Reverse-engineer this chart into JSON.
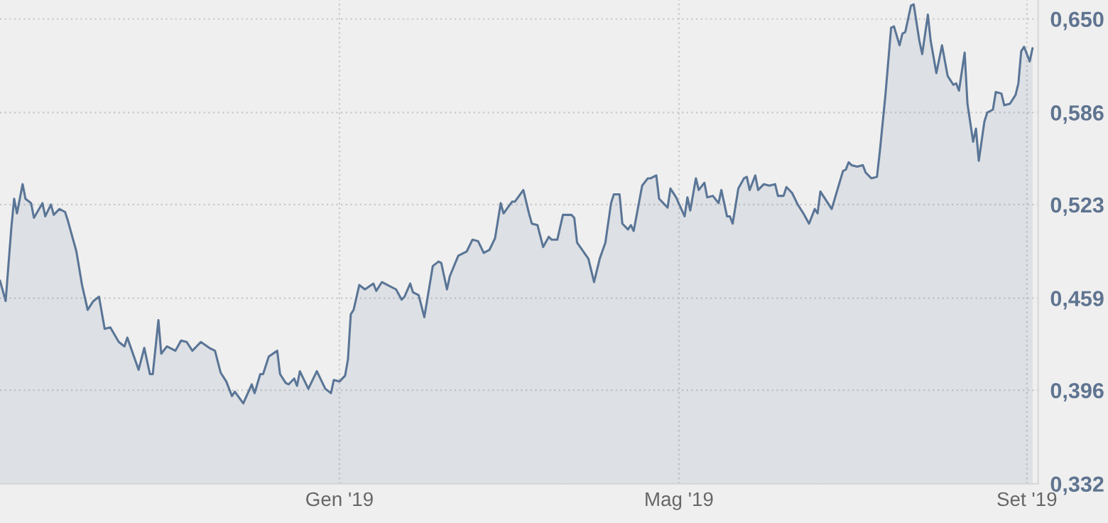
{
  "chart_data": {
    "type": "area",
    "x": [
      "2018-09-03",
      "2018-09-05",
      "2018-09-07",
      "2018-09-08",
      "2018-09-09",
      "2018-09-11",
      "2018-09-12",
      "2018-09-14",
      "2018-09-15",
      "2018-09-18",
      "2018-09-19",
      "2018-09-21",
      "2018-09-22",
      "2018-09-24",
      "2018-09-26",
      "2018-09-27",
      "2018-09-30",
      "2018-10-02",
      "2018-10-04",
      "2018-10-06",
      "2018-10-08",
      "2018-10-10",
      "2018-10-12",
      "2018-10-15",
      "2018-10-17",
      "2018-10-18",
      "2018-10-22",
      "2018-10-24",
      "2018-10-26",
      "2018-10-27",
      "2018-10-29",
      "2018-10-30",
      "2018-11-01",
      "2018-11-04",
      "2018-11-06",
      "2018-11-08",
      "2018-11-10",
      "2018-11-13",
      "2018-11-16",
      "2018-11-18",
      "2018-11-20",
      "2018-11-22",
      "2018-11-24",
      "2018-11-25",
      "2018-11-28",
      "2018-12-01",
      "2018-12-02",
      "2018-12-04",
      "2018-12-05",
      "2018-12-07",
      "2018-12-10",
      "2018-12-11",
      "2018-12-13",
      "2018-12-14",
      "2018-12-16",
      "2018-12-17",
      "2018-12-18",
      "2018-12-21",
      "2018-12-24",
      "2018-12-27",
      "2018-12-29",
      "2018-12-30",
      "2019-01-01",
      "2019-01-03",
      "2019-01-04",
      "2019-01-05",
      "2019-01-06",
      "2019-01-08",
      "2019-01-10",
      "2019-01-13",
      "2019-01-14",
      "2019-01-16",
      "2019-01-18",
      "2019-01-21",
      "2019-01-23",
      "2019-01-24",
      "2019-01-26",
      "2019-01-27",
      "2019-01-29",
      "2019-01-31",
      "2019-02-03",
      "2019-02-05",
      "2019-02-06",
      "2019-02-08",
      "2019-02-09",
      "2019-02-12",
      "2019-02-15",
      "2019-02-17",
      "2019-02-19",
      "2019-02-21",
      "2019-02-23",
      "2019-02-25",
      "2019-02-27",
      "2019-02-28",
      "2019-03-03",
      "2019-03-04",
      "2019-03-07",
      "2019-03-09",
      "2019-03-10",
      "2019-03-12",
      "2019-03-14",
      "2019-03-16",
      "2019-03-17",
      "2019-03-19",
      "2019-03-21",
      "2019-03-24",
      "2019-03-25",
      "2019-03-26",
      "2019-03-30",
      "2019-04-01",
      "2019-04-03",
      "2019-04-05",
      "2019-04-07",
      "2019-04-08",
      "2019-04-10",
      "2019-04-11",
      "2019-04-13",
      "2019-04-14",
      "2019-04-15",
      "2019-04-18",
      "2019-04-20",
      "2019-04-21",
      "2019-04-23",
      "2019-04-24",
      "2019-04-27",
      "2019-04-28",
      "2019-04-30",
      "2019-05-03",
      "2019-05-04",
      "2019-05-05",
      "2019-05-07",
      "2019-05-08",
      "2019-05-10",
      "2019-05-11",
      "2019-05-13",
      "2019-05-15",
      "2019-05-16",
      "2019-05-18",
      "2019-05-19",
      "2019-05-20",
      "2019-05-22",
      "2019-05-24",
      "2019-05-25",
      "2019-05-26",
      "2019-05-28",
      "2019-05-29",
      "2019-05-31",
      "2019-06-02",
      "2019-06-04",
      "2019-06-05",
      "2019-06-07",
      "2019-06-08",
      "2019-06-10",
      "2019-06-12",
      "2019-06-14",
      "2019-06-16",
      "2019-06-18",
      "2019-06-19",
      "2019-06-20",
      "2019-06-21",
      "2019-06-23",
      "2019-06-24",
      "2019-06-26",
      "2019-06-28",
      "2019-06-29",
      "2019-06-30",
      "2019-07-01",
      "2019-07-03",
      "2019-07-05",
      "2019-07-06",
      "2019-07-08",
      "2019-07-10",
      "2019-07-11",
      "2019-07-13",
      "2019-07-15",
      "2019-07-16",
      "2019-07-18",
      "2019-07-19",
      "2019-07-20",
      "2019-07-22",
      "2019-07-23",
      "2019-07-25",
      "2019-07-26",
      "2019-07-28",
      "2019-07-29",
      "2019-07-31",
      "2019-08-02",
      "2019-08-04",
      "2019-08-06",
      "2019-08-07",
      "2019-08-08",
      "2019-08-10",
      "2019-08-11",
      "2019-08-13",
      "2019-08-14",
      "2019-08-15",
      "2019-08-17",
      "2019-08-18",
      "2019-08-20",
      "2019-08-21",
      "2019-08-23",
      "2019-08-24",
      "2019-08-26",
      "2019-08-28",
      "2019-08-29",
      "2019-08-30",
      "2019-08-31",
      "2019-09-02",
      "2019-09-03"
    ],
    "series": [
      {
        "color": "#5a7596",
        "values": [
          0.471,
          0.457,
          0.507,
          0.527,
          0.517,
          0.537,
          0.527,
          0.524,
          0.514,
          0.524,
          0.515,
          0.523,
          0.516,
          0.52,
          0.518,
          0.512,
          0.491,
          0.468,
          0.451,
          0.457,
          0.46,
          0.438,
          0.439,
          0.429,
          0.426,
          0.432,
          0.41,
          0.425,
          0.407,
          0.407,
          0.444,
          0.421,
          0.426,
          0.423,
          0.43,
          0.429,
          0.423,
          0.429,
          0.425,
          0.423,
          0.408,
          0.402,
          0.392,
          0.395,
          0.387,
          0.4,
          0.394,
          0.407,
          0.407,
          0.419,
          0.423,
          0.407,
          0.401,
          0.4,
          0.404,
          0.399,
          0.409,
          0.397,
          0.409,
          0.397,
          0.394,
          0.403,
          0.402,
          0.406,
          0.417,
          0.448,
          0.451,
          0.468,
          0.465,
          0.469,
          0.464,
          0.47,
          0.468,
          0.465,
          0.458,
          0.46,
          0.469,
          0.463,
          0.461,
          0.446,
          0.481,
          0.484,
          0.483,
          0.465,
          0.474,
          0.488,
          0.491,
          0.499,
          0.498,
          0.49,
          0.492,
          0.5,
          0.524,
          0.517,
          0.525,
          0.525,
          0.533,
          0.517,
          0.51,
          0.509,
          0.494,
          0.501,
          0.499,
          0.499,
          0.516,
          0.516,
          0.514,
          0.497,
          0.486,
          0.47,
          0.486,
          0.497,
          0.524,
          0.53,
          0.53,
          0.51,
          0.506,
          0.509,
          0.505,
          0.536,
          0.541,
          0.541,
          0.543,
          0.527,
          0.521,
          0.534,
          0.528,
          0.515,
          0.528,
          0.519,
          0.541,
          0.533,
          0.538,
          0.528,
          0.529,
          0.524,
          0.533,
          0.515,
          0.515,
          0.51,
          0.534,
          0.541,
          0.542,
          0.533,
          0.543,
          0.533,
          0.537,
          0.536,
          0.537,
          0.529,
          0.529,
          0.535,
          0.531,
          0.523,
          0.517,
          0.51,
          0.52,
          0.517,
          0.532,
          0.529,
          0.523,
          0.52,
          0.533,
          0.546,
          0.547,
          0.552,
          0.55,
          0.549,
          0.55,
          0.545,
          0.541,
          0.542,
          0.559,
          0.598,
          0.644,
          0.645,
          0.632,
          0.64,
          0.641,
          0.659,
          0.66,
          0.635,
          0.626,
          0.653,
          0.635,
          0.613,
          0.632,
          0.611,
          0.605,
          0.606,
          0.601,
          0.627,
          0.592,
          0.566,
          0.575,
          0.553,
          0.58,
          0.586,
          0.588,
          0.6,
          0.599,
          0.591,
          0.592,
          0.598,
          0.606,
          0.628,
          0.631,
          0.621,
          0.63
        ]
      }
    ],
    "xlim": [
      "2018-09-03",
      "2019-09-05"
    ],
    "xticks": [
      {
        "value": "2019-01-01",
        "label": "Gen '19"
      },
      {
        "value": "2019-05-01",
        "label": "Mag '19"
      },
      {
        "value": "2019-09-01",
        "label": "Set '19"
      }
    ],
    "ylim": [
      0.332,
      0.663
    ],
    "yticks": [
      {
        "value": 0.332,
        "label": "0,332"
      },
      {
        "value": 0.396,
        "label": "0,396"
      },
      {
        "value": 0.459,
        "label": "0,459"
      },
      {
        "value": 0.523,
        "label": "0,523"
      },
      {
        "value": 0.586,
        "label": "0,586"
      },
      {
        "value": 0.65,
        "label": "0,650"
      }
    ],
    "grid": true,
    "legend": false
  }
}
